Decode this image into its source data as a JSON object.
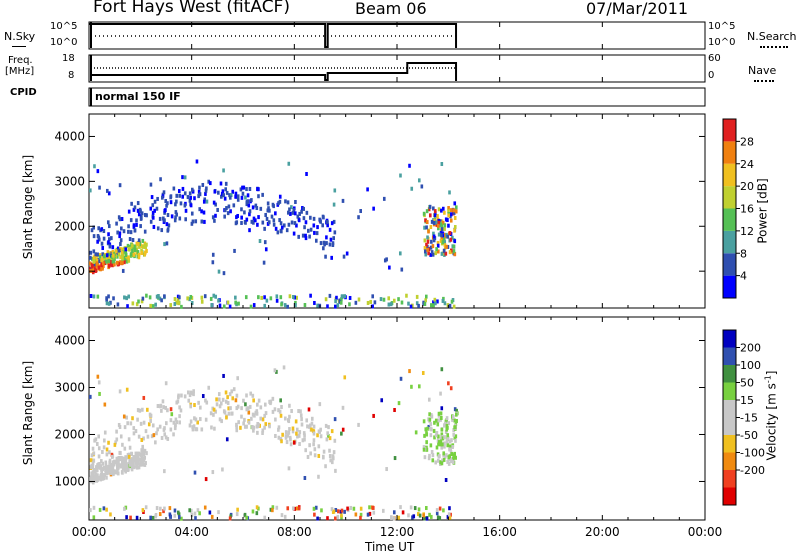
{
  "header": {
    "station": "Fort Hays West (fitACF)",
    "beam": "Beam 06",
    "date": "07/Mar/2011"
  },
  "labels": {
    "nsky": "N.Sky",
    "nsearch": "N.Search",
    "freq_line1": "Freq.",
    "freq_line2": "[MHz]",
    "nave": "Nave",
    "cpid": "CPID",
    "cpid_value": "normal 150 IF",
    "noise_tick_top": "10^5",
    "noise_tick_bottom": "10^0",
    "freq_tick_top": "18",
    "freq_tick_bottom": "8",
    "nave_tick_top": "60",
    "nave_tick_bottom": "0"
  },
  "colors": {
    "power": [
      "#0000ff",
      "#2f4fb0",
      "#4aa0a0",
      "#55c055",
      "#c0d030",
      "#f0c020",
      "#f08010",
      "#e02020"
    ],
    "velocity": [
      "#e00000",
      "#f04020",
      "#f08a10",
      "#f0c020",
      "#c8c8c8",
      "#c8c8c8",
      "#78d040",
      "#409040",
      "#3050b0",
      "#0000c0"
    ]
  },
  "chart_data": [
    {
      "type": "heatmap",
      "title": "Power",
      "ylabel": "Slant Range [km]",
      "xlabel": "",
      "xlim": [
        "00:00",
        "24:00"
      ],
      "ylim": [
        180,
        4500
      ],
      "yticks": [
        1000,
        2000,
        3000,
        4000
      ],
      "colorbar": {
        "label": "Power [dB]",
        "ticks": [
          "4",
          "8",
          "12",
          "16",
          "20",
          "24",
          "28"
        ],
        "range": [
          0,
          32
        ]
      },
      "regions_summary": [
        {
          "t_start": 0.0,
          "t_end": 1.5,
          "range_start": 950,
          "range_end": 1500,
          "value": "high power (20-28 dB)"
        },
        {
          "t_start": 0.0,
          "t_end": 9.5,
          "range_start": 1300,
          "range_end": 3500,
          "value": "low power (4-8 dB)"
        },
        {
          "t_start": 13.0,
          "t_end": 14.3,
          "range_start": 1400,
          "range_end": 2400,
          "value": "mixed power (8-28 dB)"
        }
      ]
    },
    {
      "type": "heatmap",
      "title": "Velocity",
      "ylabel": "Slant Range [km]",
      "xlabel": "Time UT",
      "xticks": [
        "00:00",
        "04:00",
        "08:00",
        "12:00",
        "16:00",
        "20:00",
        "00:00"
      ],
      "ylim": [
        180,
        4500
      ],
      "yticks": [
        1000,
        2000,
        3000,
        4000
      ],
      "colorbar": {
        "label": "Velocity [m s-1]",
        "ticks": [
          "200",
          "100",
          "50",
          "15",
          "-15",
          "-50",
          "-100",
          "-200"
        ]
      },
      "regions_summary": [
        {
          "t_start": 0.0,
          "t_end": 9.5,
          "range_start": 1000,
          "range_end": 3500,
          "value": "near zero (-15 to 15 m/s), ground scatter"
        },
        {
          "t_start": 13.0,
          "t_end": 14.3,
          "range_start": 1400,
          "range_end": 2400,
          "value": "positive (50-100 m/s)"
        }
      ]
    }
  ]
}
